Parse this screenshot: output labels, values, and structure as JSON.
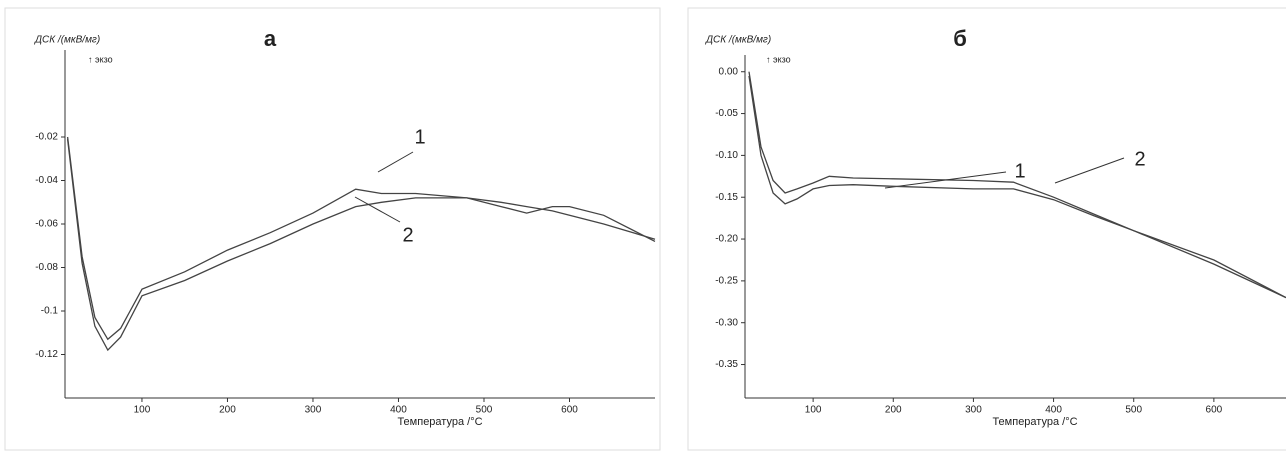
{
  "chart_data": [
    {
      "type": "line",
      "title": "а",
      "ylabel": "ДСК /(мкВ/мг)",
      "annotation": "↑ экзо",
      "xlabel": "Температура /°C",
      "xlim": [
        10,
        700
      ],
      "ylim": [
        -0.14,
        0.02
      ],
      "xticks": [
        100,
        200,
        300,
        400,
        500,
        600
      ],
      "yticks": [
        -0.02,
        -0.04,
        -0.06,
        -0.08,
        -0.1,
        -0.12
      ],
      "x": [
        13,
        30,
        45,
        60,
        75,
        100,
        150,
        200,
        250,
        300,
        350,
        380,
        420,
        480,
        520,
        550,
        580,
        600,
        640,
        700
      ],
      "series": [
        {
          "name": "1",
          "color": "#444444",
          "values": [
            -0.02,
            -0.075,
            -0.103,
            -0.113,
            -0.108,
            -0.09,
            -0.082,
            -0.072,
            -0.064,
            -0.055,
            -0.044,
            -0.046,
            -0.046,
            -0.048,
            -0.052,
            -0.055,
            -0.052,
            -0.052,
            -0.056,
            -0.068
          ]
        },
        {
          "name": "2",
          "color": "#444444",
          "values": [
            -0.021,
            -0.078,
            -0.107,
            -0.118,
            -0.112,
            -0.093,
            -0.086,
            -0.077,
            -0.069,
            -0.06,
            -0.052,
            -0.05,
            -0.048,
            -0.048,
            -0.05,
            -0.052,
            -0.054,
            -0.056,
            -0.06,
            -0.067
          ]
        }
      ]
    },
    {
      "type": "line",
      "title": "б",
      "ylabel": "ДСК /(мкВ/мг)",
      "annotation": "↑ экзо",
      "xlabel": "Температура /°C",
      "xlim": [
        15,
        690
      ],
      "ylim": [
        -0.39,
        0.02
      ],
      "xticks": [
        100,
        200,
        300,
        400,
        500,
        600
      ],
      "yticks": [
        {
          "value": 0,
          "label": "0.00"
        },
        -0.05,
        {
          "value": -0.1,
          "label": "-0.10"
        },
        -0.15,
        {
          "value": -0.2,
          "label": "-0.20"
        },
        -0.25,
        {
          "value": -0.3,
          "label": "-0.30"
        },
        -0.35
      ],
      "x": [
        20,
        35,
        50,
        65,
        80,
        100,
        120,
        150,
        200,
        300,
        350,
        400,
        450,
        500,
        600,
        690
      ],
      "series": [
        {
          "name": "1",
          "color": "#444444",
          "values": [
            0.0,
            -0.09,
            -0.13,
            -0.145,
            -0.14,
            -0.133,
            -0.125,
            -0.127,
            -0.128,
            -0.13,
            -0.132,
            -0.15,
            -0.17,
            -0.19,
            -0.23,
            -0.27
          ]
        },
        {
          "name": "2",
          "color": "#444444",
          "values": [
            -0.005,
            -0.1,
            -0.145,
            -0.158,
            -0.152,
            -0.14,
            -0.136,
            -0.135,
            -0.137,
            -0.14,
            -0.14,
            -0.153,
            -0.172,
            -0.19,
            -0.225,
            -0.27
          ]
        }
      ]
    }
  ]
}
